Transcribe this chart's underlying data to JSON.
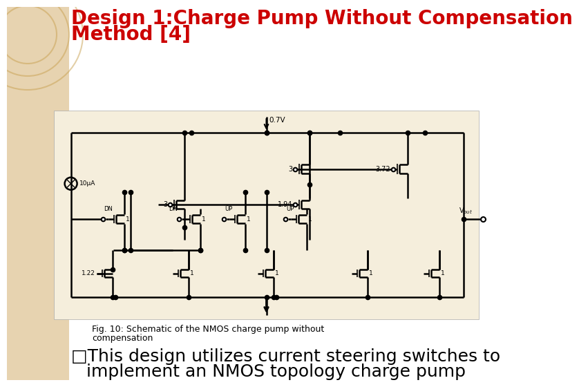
{
  "title_line1": "Design 1:Charge Pump Without Compensation",
  "title_line2": "Method [4]",
  "title_color": "#cc0000",
  "title_fontsize": 20,
  "bg_color": "#ffffff",
  "left_bg_color": "#d4b070",
  "fig_caption_line1": "Fig. 10: Schematic of the NMOS charge pump without",
  "fig_caption_line2": "compensation",
  "fig_caption_fontsize": 9,
  "bullet_line1": "□This design utilizes current steering switches to",
  "bullet_line2": "implement an NMOS topology charge pump",
  "bullet_fontsize": 18,
  "schematic_bg": "#f5eedc",
  "lc": "#000000",
  "label_0p7v": "0.7V",
  "label_10uA": "10μA",
  "label_Vout": "Vₒᵤₜ",
  "label_DN_bar": "DN",
  "label_DN": "DN",
  "label_UP_bar": "UP",
  "label_UP": "UP",
  "ratio_3a": "3",
  "ratio_3b": "3",
  "ratio_1p94": "1.94",
  "ratio_3p72": "3.72",
  "ratio_1p22": "1.22",
  "ratio_1s": [
    "1",
    "1",
    "1",
    "1",
    "1"
  ]
}
